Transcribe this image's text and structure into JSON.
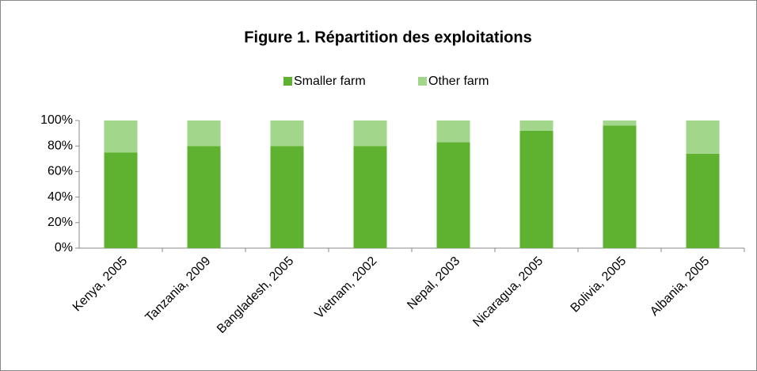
{
  "chart_data": {
    "type": "stacked_bar",
    "title": "Figure 1. Répartition des exploitations",
    "categories": [
      "Kenya, 2005",
      "Tanzania, 2009",
      "Bangladesh, 2005",
      "Vietnam, 2002",
      "Nepal, 2003",
      "Nicaragua, 2005",
      "Bolivia, 2005",
      "Albania, 2005"
    ],
    "series": [
      {
        "name": "Smaller farm",
        "color": "#5fb130",
        "values": [
          75,
          80,
          80,
          80,
          83,
          92,
          96,
          74
        ]
      },
      {
        "name": "Other farm",
        "color": "#a1d68b",
        "values": [
          25,
          20,
          20,
          20,
          17,
          8,
          4,
          26
        ]
      }
    ],
    "ylim": [
      0,
      100
    ],
    "yticks": [
      {
        "value": 0,
        "label": "0%"
      },
      {
        "value": 20,
        "label": "20%"
      },
      {
        "value": 40,
        "label": "40%"
      },
      {
        "value": 60,
        "label": "60%"
      },
      {
        "value": 80,
        "label": "80%"
      },
      {
        "value": 100,
        "label": "100%"
      }
    ],
    "legend": "top"
  }
}
